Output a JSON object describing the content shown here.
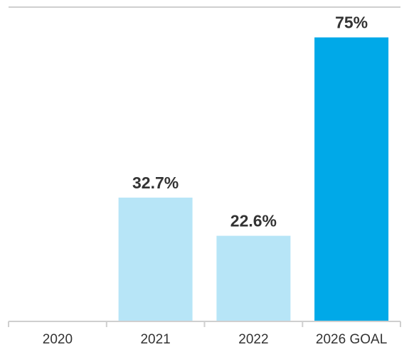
{
  "chart_data": {
    "type": "bar",
    "categories": [
      "2020",
      "2021",
      "2022",
      "2026 GOAL"
    ],
    "values": [
      null,
      32.7,
      22.6,
      75
    ],
    "data_labels": [
      "",
      "32.7%",
      "22.6%",
      "75%"
    ],
    "ylim": [
      0,
      83
    ],
    "grid": false,
    "legend": "none",
    "colors": {
      "bars": [
        "#b7e5f7",
        "#b7e5f7",
        "#b7e5f7",
        "#00a9e8"
      ],
      "axis": "#cfcfcf",
      "text": "#333333"
    }
  }
}
